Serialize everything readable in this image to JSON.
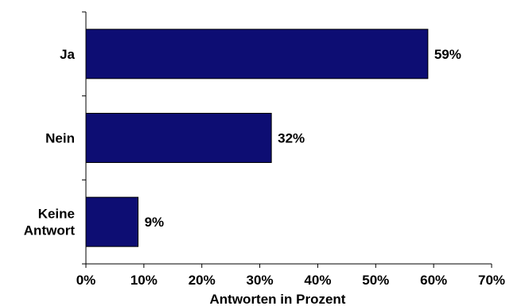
{
  "chart_data": {
    "type": "bar",
    "orientation": "horizontal",
    "categories": [
      [
        "Ja"
      ],
      [
        "Nein"
      ],
      [
        "Keine",
        "Antwort"
      ]
    ],
    "values": [
      59,
      32,
      9
    ],
    "value_labels": [
      "59%",
      "32%",
      "9%"
    ],
    "xlabel": "Antworten in Prozent",
    "ylabel": "",
    "xlim": [
      0,
      70
    ],
    "xticks": [
      0,
      10,
      20,
      30,
      40,
      50,
      60,
      70
    ],
    "xtick_labels": [
      "0%",
      "10%",
      "20%",
      "30%",
      "40%",
      "50%",
      "60%",
      "70%"
    ],
    "grid": false,
    "legend": "none",
    "colors": {
      "bar_fill": "#0d0d73",
      "bar_stroke": "#000000",
      "axis": "#000000"
    }
  }
}
